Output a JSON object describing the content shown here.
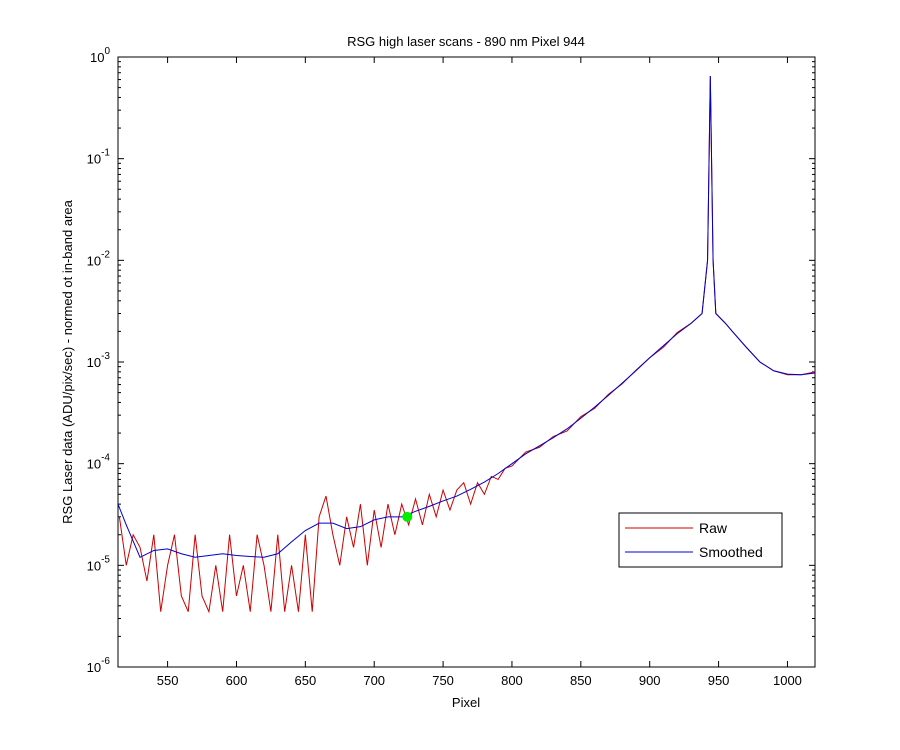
{
  "chart_data": {
    "type": "line",
    "title": "RSG high laser scans  - 890 nm    Pixel 944",
    "xlabel": "Pixel",
    "ylabel": "RSG Laser data (ADU/pix/sec) - normed ot in-band area",
    "xlim": [
      514,
      1020
    ],
    "xticks": [
      550,
      600,
      650,
      700,
      750,
      800,
      850,
      900,
      950,
      1000
    ],
    "ylim": [
      1e-06,
      1
    ],
    "yscale": "log",
    "yticks": [
      {
        "value": 1e-06,
        "label": "10^-6"
      },
      {
        "value": 1e-05,
        "label": "10^-5"
      },
      {
        "value": 0.0001,
        "label": "10^-4"
      },
      {
        "value": 0.001,
        "label": "10^-3"
      },
      {
        "value": 0.01,
        "label": "10^-2"
      },
      {
        "value": 0.1,
        "label": "10^-1"
      },
      {
        "value": 1,
        "label": "10^0"
      }
    ],
    "grid": false,
    "legend": "lower right",
    "series": [
      {
        "name": "Raw",
        "color": "#cc0000",
        "x": [
          515,
          520,
          525,
          530,
          535,
          540,
          545,
          550,
          555,
          560,
          565,
          570,
          575,
          580,
          585,
          590,
          595,
          600,
          605,
          610,
          615,
          620,
          625,
          630,
          635,
          640,
          645,
          650,
          655,
          660,
          665,
          670,
          675,
          680,
          685,
          690,
          695,
          700,
          705,
          710,
          715,
          720,
          725,
          730,
          735,
          740,
          745,
          750,
          755,
          760,
          765,
          770,
          775,
          780,
          785,
          790,
          795,
          800,
          810,
          820,
          830,
          840,
          850,
          860,
          870,
          880,
          890,
          900,
          910,
          920,
          930,
          938,
          942,
          944,
          946,
          948,
          955,
          960,
          970,
          980,
          990,
          1000,
          1010,
          1020
        ],
        "values": [
          3e-05,
          1e-05,
          2e-05,
          1.5e-05,
          7e-06,
          2e-05,
          3.5e-06,
          1e-05,
          2e-05,
          5e-06,
          3.5e-06,
          2e-05,
          5e-06,
          3.5e-06,
          1e-05,
          3.5e-06,
          2e-05,
          5e-06,
          1e-05,
          3.5e-06,
          2e-05,
          1e-05,
          3.5e-06,
          2e-05,
          3.5e-06,
          1e-05,
          3.5e-06,
          2e-05,
          3.5e-06,
          3e-05,
          4.8e-05,
          2e-05,
          1e-05,
          3e-05,
          1.5e-05,
          4e-05,
          1e-05,
          3.5e-05,
          1.5e-05,
          4e-05,
          2e-05,
          4e-05,
          2.5e-05,
          4.5e-05,
          2.5e-05,
          5e-05,
          3e-05,
          5.5e-05,
          3.5e-05,
          5.5e-05,
          6.5e-05,
          4e-05,
          6.5e-05,
          5e-05,
          7.5e-05,
          7e-05,
          9e-05,
          9.5e-05,
          0.00013,
          0.000145,
          0.000185,
          0.00021,
          0.00029,
          0.00035,
          0.00048,
          0.00061,
          0.00083,
          0.0011,
          0.0014,
          0.00195,
          0.0024,
          0.003,
          0.01,
          0.65,
          0.01,
          0.003,
          0.0024,
          0.002,
          0.0014,
          0.001,
          0.00082,
          0.00075,
          0.00075,
          0.0008
        ]
      },
      {
        "name": "Smoothed",
        "color": "#0000cc",
        "x": [
          514,
          520,
          530,
          540,
          550,
          560,
          570,
          580,
          590,
          600,
          610,
          620,
          630,
          640,
          650,
          660,
          670,
          680,
          690,
          700,
          710,
          720,
          730,
          740,
          750,
          760,
          770,
          780,
          790,
          800,
          810,
          820,
          830,
          840,
          850,
          860,
          870,
          880,
          890,
          900,
          910,
          920,
          930,
          938,
          942,
          944,
          946,
          948,
          955,
          960,
          970,
          980,
          990,
          1000,
          1010,
          1020
        ],
        "values": [
          4e-05,
          2.5e-05,
          1.2e-05,
          1.4e-05,
          1.45e-05,
          1.3e-05,
          1.2e-05,
          1.25e-05,
          1.3e-05,
          1.25e-05,
          1.22e-05,
          1.2e-05,
          1.3e-05,
          1.7e-05,
          2.2e-05,
          2.6e-05,
          2.6e-05,
          2.3e-05,
          2.4e-05,
          2.8e-05,
          3e-05,
          3e-05,
          3.4e-05,
          3.8e-05,
          4.3e-05,
          4.8e-05,
          5.6e-05,
          6.6e-05,
          8e-05,
          0.0001,
          0.000125,
          0.00015,
          0.00018,
          0.00022,
          0.00028,
          0.00036,
          0.00047,
          0.00062,
          0.00082,
          0.0011,
          0.00145,
          0.0019,
          0.0024,
          0.003,
          0.01,
          0.65,
          0.01,
          0.003,
          0.0024,
          0.002,
          0.0014,
          0.001,
          0.00082,
          0.00076,
          0.00075,
          0.00078
        ]
      }
    ],
    "marker": {
      "x": 724,
      "y": 3e-05,
      "color": "#00ee00"
    }
  }
}
